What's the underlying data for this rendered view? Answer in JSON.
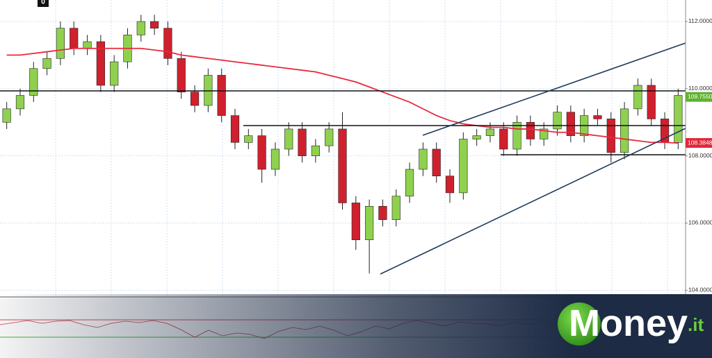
{
  "chart_data": {
    "type": "candlestick",
    "badge": "0",
    "open": [
      109.0,
      109.4,
      109.8,
      110.6,
      110.9,
      111.8,
      111.2,
      111.4,
      110.1,
      110.8,
      111.6,
      112.0,
      111.8,
      110.9,
      109.9,
      109.5,
      110.4,
      109.2,
      108.4,
      108.6,
      107.6,
      108.2,
      108.8,
      108.0,
      108.3,
      108.8,
      106.6,
      105.5,
      106.5,
      106.1,
      106.8,
      107.6,
      108.2,
      107.4,
      106.9,
      108.5,
      108.6,
      108.8,
      108.2,
      109.0,
      108.5,
      108.8,
      109.3,
      108.6,
      109.2,
      109.1,
      108.1,
      109.4,
      110.1,
      109.1,
      108.4
    ],
    "high": [
      109.6,
      110.0,
      110.8,
      111.1,
      112.0,
      112.0,
      111.6,
      111.6,
      111.0,
      111.8,
      112.2,
      112.2,
      112.0,
      111.1,
      110.1,
      110.6,
      110.6,
      109.4,
      108.8,
      108.8,
      108.4,
      109.0,
      109.0,
      108.5,
      109.0,
      109.3,
      106.8,
      106.7,
      106.7,
      107.0,
      107.8,
      108.4,
      108.4,
      107.6,
      108.7,
      108.8,
      109.0,
      109.0,
      109.2,
      109.2,
      109.0,
      109.5,
      109.5,
      109.4,
      109.4,
      109.3,
      109.6,
      110.3,
      110.3,
      109.3,
      110.0
    ],
    "low": [
      108.8,
      109.2,
      109.6,
      110.4,
      110.7,
      111.0,
      111.0,
      109.9,
      109.9,
      110.6,
      111.4,
      111.6,
      110.7,
      109.7,
      109.3,
      109.3,
      109.0,
      108.2,
      108.2,
      107.2,
      107.4,
      108.0,
      107.8,
      107.8,
      108.1,
      106.4,
      105.2,
      104.5,
      105.9,
      105.9,
      106.6,
      107.4,
      107.2,
      106.6,
      106.7,
      108.3,
      108.4,
      108.0,
      108.0,
      108.3,
      108.3,
      108.6,
      108.4,
      108.4,
      108.9,
      107.8,
      107.9,
      109.2,
      108.9,
      108.2,
      108.2
    ],
    "close": [
      109.4,
      109.8,
      110.6,
      110.9,
      111.8,
      111.2,
      111.4,
      110.1,
      110.8,
      111.6,
      112.0,
      111.8,
      110.9,
      109.9,
      109.5,
      110.4,
      109.2,
      108.4,
      108.6,
      107.6,
      108.2,
      108.8,
      108.0,
      108.3,
      108.8,
      106.6,
      105.5,
      106.5,
      106.1,
      106.8,
      107.6,
      108.2,
      107.4,
      106.9,
      108.5,
      108.6,
      108.8,
      108.2,
      109.0,
      108.5,
      108.8,
      109.3,
      108.6,
      109.2,
      109.1,
      108.1,
      109.4,
      110.1,
      109.1,
      108.4,
      109.8
    ],
    "moving_average": {
      "color": "#e8283c",
      "values": [
        111.0,
        111.0,
        111.05,
        111.1,
        111.15,
        111.2,
        111.2,
        111.2,
        111.2,
        111.2,
        111.2,
        111.15,
        111.1,
        111.0,
        110.95,
        110.9,
        110.85,
        110.8,
        110.75,
        110.7,
        110.65,
        110.6,
        110.55,
        110.5,
        110.4,
        110.3,
        110.2,
        110.05,
        109.9,
        109.75,
        109.6,
        109.4,
        109.2,
        109.05,
        108.95,
        108.9,
        108.85,
        108.85,
        108.8,
        108.8,
        108.75,
        108.7,
        108.7,
        108.65,
        108.6,
        108.55,
        108.5,
        108.45,
        108.4,
        108.4,
        108.38
      ]
    },
    "up_color": "#8fd14f",
    "down_color": "#d0202e",
    "ylim": [
      103.8,
      112.64
    ],
    "yticks": [
      {
        "value": 104,
        "label": "104.0000"
      },
      {
        "value": 106,
        "label": "106.0000"
      },
      {
        "value": 108,
        "label": "108.0000"
      },
      {
        "value": 110,
        "label": "110.0000"
      },
      {
        "value": 112,
        "label": "112.0000"
      }
    ],
    "grid": true,
    "price_tags": [
      {
        "value": 109.755,
        "label": "109.7550",
        "color": "#5fb22e"
      },
      {
        "value": 108.3848,
        "label": "108.3848",
        "color": "#e0283a"
      }
    ]
  },
  "logo": {
    "name": "Money",
    "suffix": ".it"
  }
}
